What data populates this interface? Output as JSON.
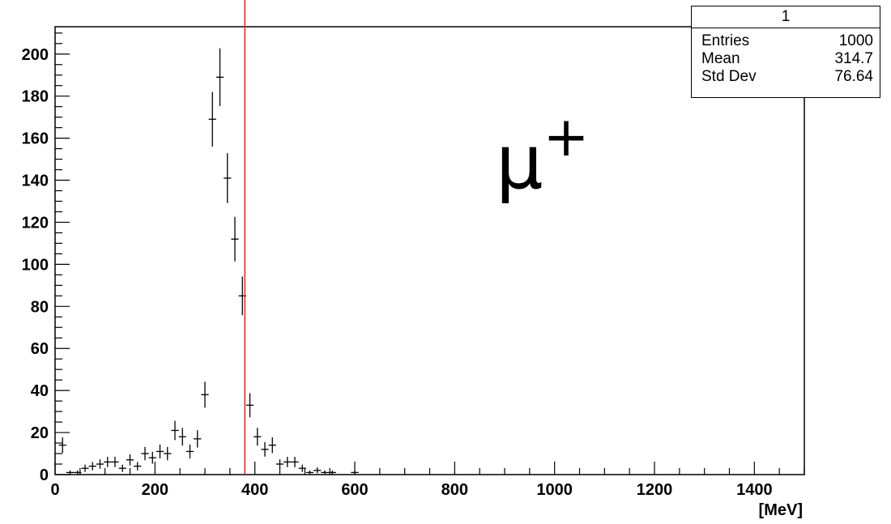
{
  "stats_box": {
    "title": "1",
    "rows": [
      {
        "label": "Entries",
        "value": "1000"
      },
      {
        "label": "Mean",
        "value": "314.7"
      },
      {
        "label": "Std Dev",
        "value": "76.64"
      }
    ]
  },
  "annotation": {
    "text": "μ",
    "superscript": "+"
  },
  "colors": {
    "marker_line": "#e8211b",
    "data": "#000000",
    "frame": "#000000"
  },
  "chart_data": {
    "type": "scatter",
    "style": "histogram-error-bars",
    "xlabel": "[MeV]",
    "ylabel": "",
    "xlim": [
      0,
      1500
    ],
    "ylim": [
      0,
      213
    ],
    "x_ticks": [
      0,
      200,
      400,
      600,
      800,
      1000,
      1200,
      1400
    ],
    "y_ticks": [
      0,
      20,
      40,
      60,
      80,
      100,
      120,
      140,
      160,
      180,
      200
    ],
    "bin_width": 15,
    "vertical_line_x": 380,
    "grid": false,
    "points": [
      {
        "x": 15,
        "y": 14
      },
      {
        "x": 30,
        "y": 1
      },
      {
        "x": 45,
        "y": 1
      },
      {
        "x": 60,
        "y": 3
      },
      {
        "x": 75,
        "y": 4
      },
      {
        "x": 90,
        "y": 5
      },
      {
        "x": 105,
        "y": 6
      },
      {
        "x": 120,
        "y": 6
      },
      {
        "x": 135,
        "y": 3
      },
      {
        "x": 150,
        "y": 7
      },
      {
        "x": 165,
        "y": 4
      },
      {
        "x": 180,
        "y": 10
      },
      {
        "x": 195,
        "y": 8
      },
      {
        "x": 210,
        "y": 11
      },
      {
        "x": 225,
        "y": 10
      },
      {
        "x": 240,
        "y": 21
      },
      {
        "x": 255,
        "y": 18
      },
      {
        "x": 270,
        "y": 11
      },
      {
        "x": 285,
        "y": 17
      },
      {
        "x": 300,
        "y": 38
      },
      {
        "x": 315,
        "y": 169
      },
      {
        "x": 330,
        "y": 189
      },
      {
        "x": 345,
        "y": 141
      },
      {
        "x": 360,
        "y": 112
      },
      {
        "x": 375,
        "y": 85
      },
      {
        "x": 390,
        "y": 33
      },
      {
        "x": 405,
        "y": 18
      },
      {
        "x": 420,
        "y": 12
      },
      {
        "x": 435,
        "y": 14
      },
      {
        "x": 450,
        "y": 5
      },
      {
        "x": 465,
        "y": 6
      },
      {
        "x": 480,
        "y": 6
      },
      {
        "x": 495,
        "y": 3
      },
      {
        "x": 510,
        "y": 1
      },
      {
        "x": 525,
        "y": 2
      },
      {
        "x": 540,
        "y": 1
      },
      {
        "x": 555,
        "y": 1
      },
      {
        "x": 600,
        "y": 1
      }
    ]
  }
}
